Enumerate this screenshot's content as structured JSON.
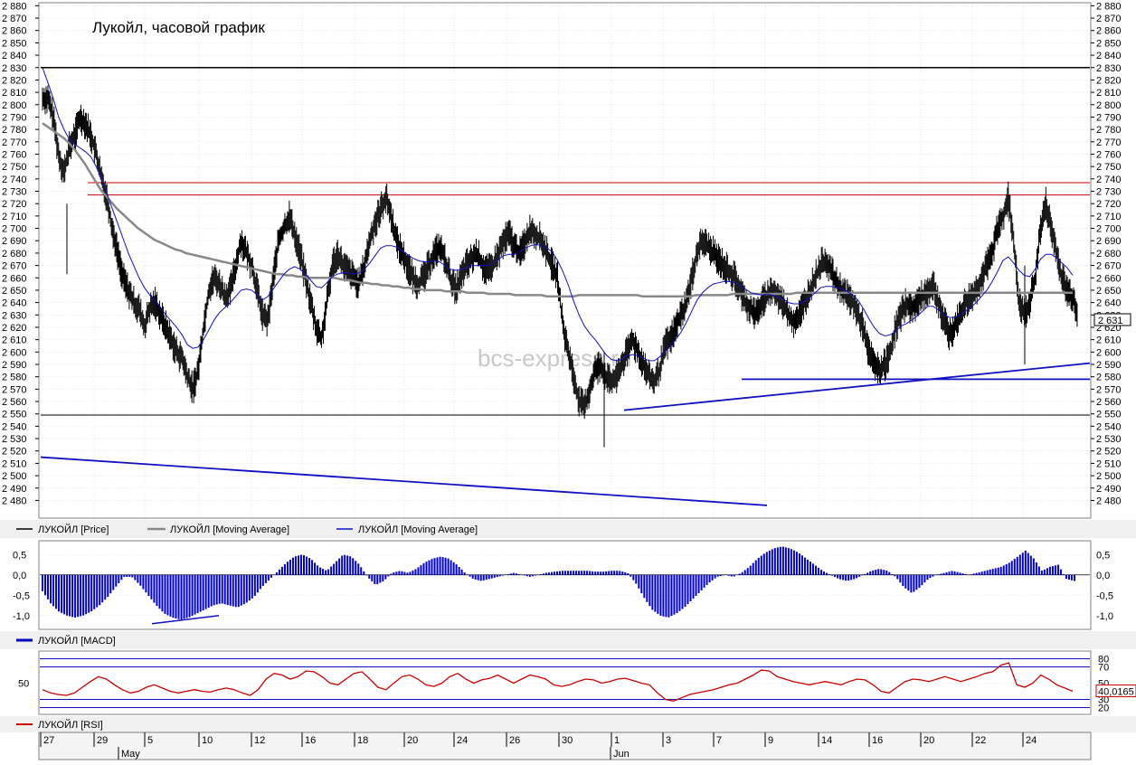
{
  "chart_data": {
    "type": "candlestick",
    "title": "Лукойл, часовой график",
    "watermark": "bcs-express.ru",
    "price_axis": {
      "ylim": [
        2473,
        2881
      ],
      "ticks": [
        "2 880",
        "2 870",
        "2 860",
        "2 850",
        "2 840",
        "2 830",
        "2 820",
        "2 810",
        "2 800",
        "2 790",
        "2 780",
        "2 770",
        "2 760",
        "2 750",
        "2 740",
        "2 730",
        "2 720",
        "2 710",
        "2 700",
        "2 690",
        "2 680",
        "2 670",
        "2 660",
        "2 650",
        "2 640",
        "2 630",
        "2 620",
        "2 610",
        "2 600",
        "2 590",
        "2 580",
        "2 570",
        "2 560",
        "2 550",
        "2 540",
        "2 530",
        "2 520",
        "2 510",
        "2 500",
        "2 490",
        "2 480"
      ],
      "last_price_label": "2 631",
      "last_price": 2631
    },
    "price_series": [
      2805,
      2790,
      2760,
      2745,
      2765,
      2775,
      2790,
      2785,
      2775,
      2760,
      2740,
      2725,
      2700,
      2680,
      2660,
      2650,
      2640,
      2635,
      2620,
      2635,
      2640,
      2630,
      2620,
      2610,
      2600,
      2595,
      2580,
      2570,
      2585,
      2620,
      2650,
      2660,
      2655,
      2645,
      2650,
      2670,
      2690,
      2680,
      2670,
      2650,
      2630,
      2625,
      2660,
      2690,
      2700,
      2710,
      2695,
      2680,
      2660,
      2640,
      2620,
      2610,
      2640,
      2670,
      2680,
      2670,
      2665,
      2660,
      2655,
      2670,
      2690,
      2705,
      2715,
      2725,
      2710,
      2690,
      2680,
      2670,
      2660,
      2655,
      2660,
      2670,
      2680,
      2685,
      2675,
      2660,
      2650,
      2660,
      2670,
      2675,
      2680,
      2670,
      2665,
      2670,
      2680,
      2690,
      2695,
      2685,
      2680,
      2690,
      2700,
      2695,
      2690,
      2680,
      2670,
      2660,
      2620,
      2600,
      2580,
      2560,
      2555,
      2570,
      2585,
      2590,
      2580,
      2575,
      2580,
      2590,
      2600,
      2610,
      2600,
      2590,
      2580,
      2575,
      2585,
      2605,
      2610,
      2620,
      2630,
      2640,
      2660,
      2680,
      2690,
      2685,
      2680,
      2675,
      2670,
      2665,
      2660,
      2650,
      2640,
      2635,
      2630,
      2640,
      2645,
      2650,
      2645,
      2640,
      2630,
      2625,
      2630,
      2640,
      2650,
      2660,
      2670,
      2675,
      2665,
      2655,
      2650,
      2645,
      2640,
      2630,
      2620,
      2600,
      2590,
      2585,
      2590,
      2600,
      2620,
      2630,
      2640,
      2635,
      2640,
      2645,
      2650,
      2655,
      2640,
      2625,
      2615,
      2620,
      2630,
      2640,
      2645,
      2650,
      2660,
      2670,
      2680,
      2700,
      2710,
      2725,
      2690,
      2640,
      2630,
      2640,
      2660,
      2700,
      2720,
      2700,
      2680,
      2660,
      2650,
      2645,
      2631
    ],
    "ma_gray": [
      2785,
      2782,
      2779,
      2776,
      2773,
      2769,
      2764,
      2758,
      2752,
      2745,
      2738,
      2731,
      2726,
      2721,
      2716,
      2712,
      2708,
      2704,
      2700,
      2697,
      2694,
      2691,
      2689,
      2687,
      2685,
      2683,
      2682,
      2680,
      2679,
      2678,
      2677,
      2676,
      2675,
      2674,
      2673,
      2672,
      2671,
      2670,
      2669,
      2668,
      2667,
      2666,
      2665,
      2664,
      2663,
      2663,
      2662,
      2662,
      2661,
      2661,
      2660,
      2660,
      2660,
      2660,
      2660,
      2660,
      2659,
      2658,
      2658,
      2657,
      2656,
      2656,
      2655,
      2655,
      2654,
      2654,
      2653,
      2653,
      2652,
      2652,
      2651,
      2651,
      2650,
      2650,
      2650,
      2650,
      2649,
      2649,
      2649,
      2649,
      2648,
      2648,
      2648,
      2648,
      2647,
      2647,
      2647,
      2647,
      2647,
      2646,
      2646,
      2646,
      2646,
      2646,
      2646,
      2645,
      2645,
      2645,
      2645,
      2645,
      2645,
      2646,
      2646,
      2646,
      2646,
      2646,
      2646,
      2646,
      2646,
      2646,
      2646,
      2646,
      2646,
      2645,
      2645,
      2645,
      2645,
      2645,
      2645,
      2645,
      2645,
      2645,
      2645,
      2646,
      2646,
      2646,
      2646,
      2646,
      2646,
      2646,
      2647,
      2647,
      2647,
      2647,
      2647,
      2647,
      2647,
      2647,
      2647,
      2647,
      2647,
      2647,
      2648,
      2648,
      2648,
      2648,
      2648,
      2648,
      2648,
      2648,
      2648,
      2648,
      2648,
      2648,
      2648,
      2648,
      2648,
      2648,
      2648,
      2648,
      2648,
      2648,
      2648,
      2648,
      2648,
      2648,
      2648,
      2648,
      2648,
      2648,
      2648,
      2648,
      2648,
      2648,
      2648,
      2648,
      2648,
      2648,
      2648,
      2648,
      2648,
      2648,
      2648,
      2648,
      2648,
      2648,
      2648,
      2648,
      2648,
      2648,
      2648,
      2648,
      2648,
      2648,
      2648
    ],
    "ma_blue": [
      2830,
      2818,
      2805,
      2790,
      2780,
      2772,
      2768,
      2765,
      2762,
      2758,
      2750,
      2740,
      2728,
      2716,
      2704,
      2692,
      2680,
      2670,
      2660,
      2652,
      2646,
      2641,
      2636,
      2630,
      2625,
      2620,
      2614,
      2606,
      2603,
      2604,
      2610,
      2618,
      2626,
      2632,
      2636,
      2640,
      2645,
      2650,
      2651,
      2650,
      2646,
      2642,
      2645,
      2651,
      2657,
      2663,
      2667,
      2669,
      2667,
      2663,
      2658,
      2653,
      2652,
      2656,
      2661,
      2663,
      2664,
      2664,
      2663,
      2664,
      2667,
      2672,
      2678,
      2684,
      2686,
      2686,
      2685,
      2682,
      2679,
      2676,
      2674,
      2673,
      2673,
      2674,
      2673,
      2670,
      2667,
      2666,
      2667,
      2668,
      2670,
      2670,
      2670,
      2670,
      2672,
      2675,
      2678,
      2679,
      2679,
      2681,
      2684,
      2686,
      2687,
      2686,
      2684,
      2681,
      2674,
      2665,
      2654,
      2641,
      2630,
      2621,
      2615,
      2610,
      2604,
      2598,
      2594,
      2593,
      2594,
      2597,
      2598,
      2597,
      2595,
      2593,
      2593,
      2596,
      2600,
      2605,
      2610,
      2616,
      2624,
      2633,
      2642,
      2648,
      2652,
      2655,
      2656,
      2657,
      2657,
      2656,
      2654,
      2651,
      2648,
      2647,
      2646,
      2647,
      2646,
      2645,
      2643,
      2640,
      2639,
      2639,
      2641,
      2644,
      2648,
      2652,
      2653,
      2653,
      2652,
      2651,
      2649,
      2646,
      2642,
      2635,
      2627,
      2620,
      2615,
      2613,
      2614,
      2617,
      2621,
      2623,
      2626,
      2629,
      2633,
      2637,
      2637,
      2634,
      2630,
      2628,
      2628,
      2630,
      2633,
      2636,
      2640,
      2645,
      2650,
      2657,
      2665,
      2674,
      2677,
      2672,
      2666,
      2662,
      2661,
      2667,
      2675,
      2679,
      2679,
      2676,
      2672,
      2668,
      2662
    ],
    "support_resistance_levels": [
      2830,
      2727,
      2737,
      2549,
      2578
    ],
    "rising_support_line": [
      2553,
      2591
    ],
    "falling_line": [
      2515,
      2476
    ],
    "legend_price": [
      "ЛУКОЙЛ [Price]",
      "ЛУКОЙЛ [Moving Average]",
      "ЛУКОЙЛ [Moving Average]"
    ],
    "macd": {
      "legend": "ЛУКОЙЛ [MACD]",
      "ylim": [
        -1.25,
        0.75
      ],
      "ticks": [
        "0,5",
        "0,0",
        "-0,5",
        "-1,0"
      ],
      "values": [
        -0.4,
        -0.7,
        -0.9,
        -1.0,
        -1.05,
        -1.0,
        -0.9,
        -0.75,
        -0.55,
        -0.3,
        -0.05,
        -0.05,
        -0.25,
        -0.5,
        -0.75,
        -0.95,
        -1.05,
        -1.1,
        -1.05,
        -0.95,
        -0.85,
        -0.75,
        -0.7,
        -0.75,
        -0.8,
        -0.7,
        -0.55,
        -0.3,
        -0.1,
        0.1,
        0.3,
        0.45,
        0.5,
        0.4,
        0.2,
        0.1,
        0.3,
        0.5,
        0.45,
        0.25,
        -0.05,
        -0.25,
        -0.15,
        0.05,
        0.1,
        0.05,
        0.15,
        0.3,
        0.4,
        0.45,
        0.4,
        0.25,
        0.05,
        -0.1,
        -0.15,
        -0.1,
        -0.05,
        0.0,
        0.05,
        0.0,
        -0.05,
        0.0,
        0.05,
        0.08,
        0.1,
        0.1,
        0.1,
        0.1,
        0.08,
        0.08,
        0.1,
        0.1,
        0.05,
        -0.2,
        -0.55,
        -0.85,
        -1.0,
        -1.05,
        -0.95,
        -0.8,
        -0.6,
        -0.4,
        -0.2,
        -0.05,
        0.0,
        -0.05,
        0.05,
        0.2,
        0.4,
        0.55,
        0.65,
        0.7,
        0.65,
        0.55,
        0.4,
        0.25,
        0.1,
        0.0,
        -0.1,
        -0.15,
        -0.1,
        0.0,
        0.1,
        0.15,
        0.1,
        -0.05,
        -0.3,
        -0.45,
        -0.3,
        -0.1,
        0.0,
        0.05,
        0.1,
        0.05,
        0.0,
        0.05,
        0.1,
        0.15,
        0.2,
        0.3,
        0.45,
        0.6,
        0.4,
        0.1,
        0.2,
        0.25,
        -0.1,
        -0.15
      ],
      "divergence_line": [
        -1.2,
        -1.0
      ]
    },
    "rsi": {
      "legend": "ЛУКОЙЛ [RSI]",
      "ticks": [
        "80",
        "70",
        "50",
        "30",
        "20"
      ],
      "left_tick": "50",
      "last_value_label": "40,0165",
      "values": [
        42,
        38,
        36,
        35,
        38,
        45,
        52,
        58,
        55,
        48,
        42,
        38,
        40,
        45,
        48,
        44,
        40,
        38,
        40,
        42,
        40,
        39,
        42,
        44,
        42,
        38,
        35,
        42,
        55,
        62,
        60,
        55,
        58,
        65,
        64,
        58,
        50,
        48,
        55,
        62,
        64,
        55,
        45,
        42,
        50,
        58,
        60,
        55,
        48,
        46,
        50,
        58,
        62,
        55,
        50,
        54,
        56,
        60,
        55,
        50,
        55,
        60,
        58,
        55,
        48,
        46,
        48,
        52,
        55,
        54,
        50,
        52,
        55,
        56,
        53,
        50,
        48,
        38,
        30,
        28,
        32,
        36,
        38,
        40,
        42,
        45,
        48,
        50,
        55,
        60,
        66,
        65,
        58,
        55,
        52,
        50,
        48,
        50,
        52,
        50,
        48,
        52,
        55,
        54,
        48,
        40,
        38,
        45,
        52,
        55,
        54,
        52,
        55,
        58,
        55,
        52,
        55,
        58,
        62,
        64,
        72,
        75,
        48,
        45,
        50,
        60,
        55,
        48,
        44,
        40
      ],
      "bands": [
        80,
        70,
        30,
        20
      ]
    },
    "x_axis": {
      "ticks": [
        "27",
        "29",
        "5",
        "10",
        "12",
        "16",
        "18",
        "20",
        "24",
        "26",
        "30",
        "1",
        "3",
        "7",
        "9",
        "14",
        "16",
        "20",
        "22",
        "24"
      ],
      "months": [
        "May",
        "Jun"
      ]
    }
  }
}
